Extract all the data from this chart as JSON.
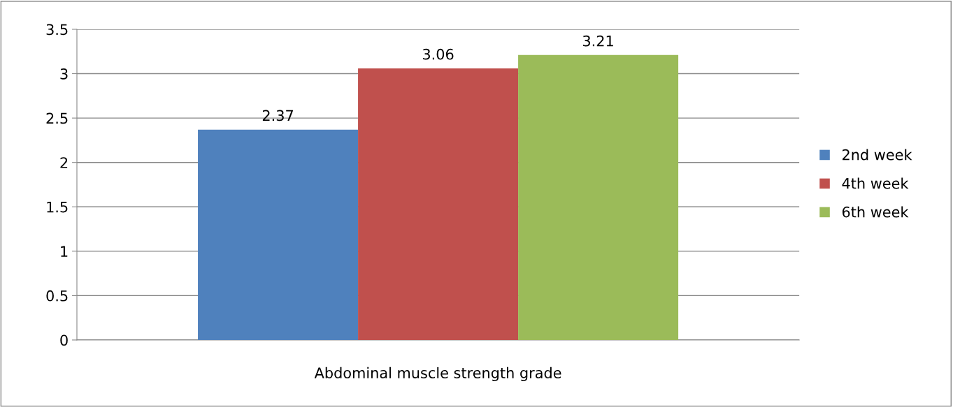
{
  "chart_data": {
    "type": "bar",
    "categories": [
      "Abdominal muscle strength grade"
    ],
    "series": [
      {
        "name": "2nd week",
        "color": "#4f81bd",
        "values": [
          2.37
        ]
      },
      {
        "name": "4th week",
        "color": "#c0504d",
        "values": [
          3.06
        ]
      },
      {
        "name": "6th week",
        "color": "#9bbb59",
        "values": [
          3.21
        ]
      }
    ],
    "ylim": [
      0,
      3.5
    ],
    "yticks": [
      0,
      0.5,
      1,
      1.5,
      2,
      2.5,
      3,
      3.5
    ],
    "grid": "y",
    "legend": "right",
    "data_labels": true
  }
}
